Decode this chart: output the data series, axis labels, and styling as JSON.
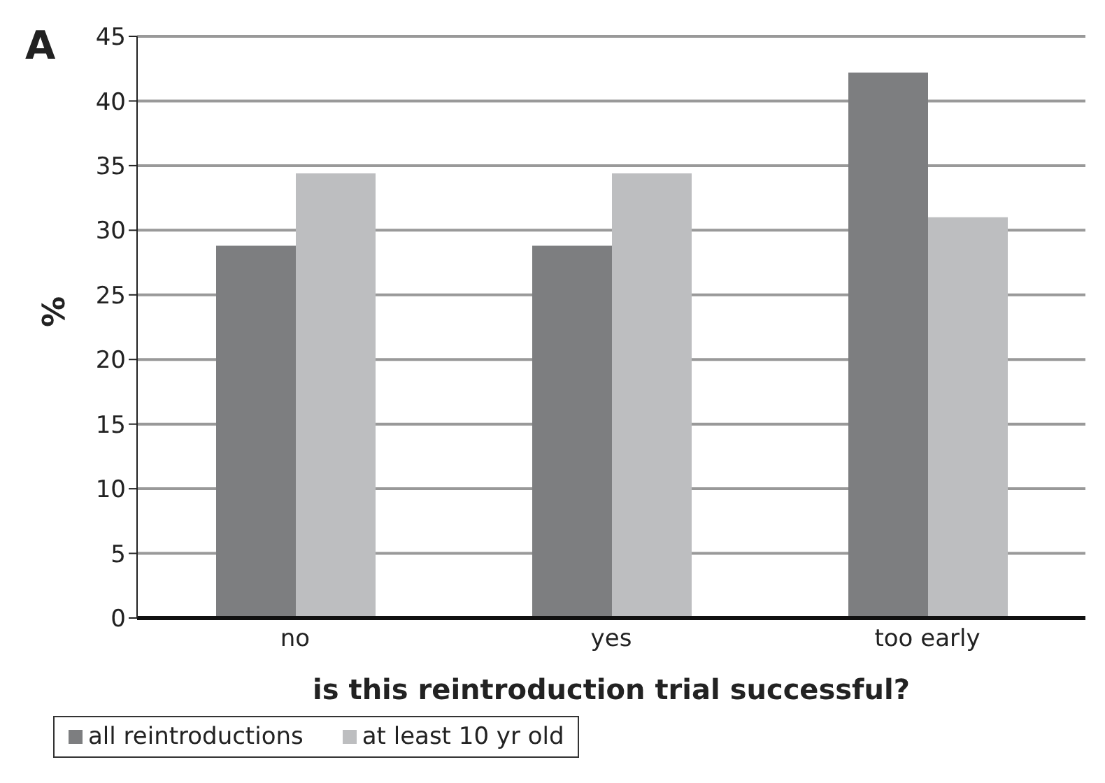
{
  "chart_data": {
    "type": "bar",
    "annotations": [
      "A"
    ],
    "xlabel": "is this reintroduction trial successful?",
    "ylabel": "%",
    "categories": [
      "no",
      "yes",
      "too early"
    ],
    "series": [
      {
        "name": "all reintroductions",
        "color": "#7d7e80",
        "values": [
          28.8,
          28.8,
          42.2
        ]
      },
      {
        "name": "at least 10 yr old",
        "color": "#bdbec0",
        "values": [
          34.4,
          34.4,
          31.0
        ]
      }
    ],
    "ylim": [
      0,
      45
    ],
    "yticks": [
      0,
      5,
      10,
      15,
      20,
      25,
      30,
      35,
      40,
      45
    ],
    "grid": "y",
    "legend": "bottom"
  }
}
